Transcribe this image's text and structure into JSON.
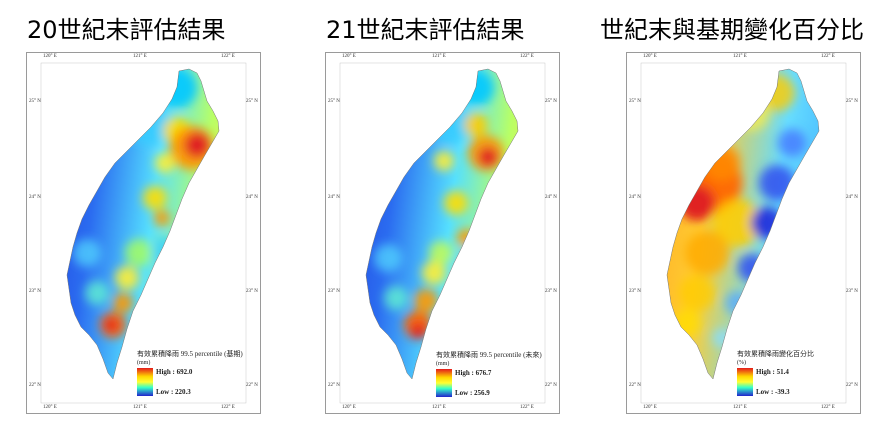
{
  "panels": [
    {
      "title": "20世紀末評估結果",
      "legend_title": "有效累積降雨 99.5 percentile (基期)",
      "unit": "(mm)",
      "high": "High : 692.0",
      "low": "Low : 220.3",
      "ramp": "jet"
    },
    {
      "title": "21世紀末評估結果",
      "legend_title": "有效累積降雨 99.5 percentile (未來)",
      "unit": "(mm)",
      "high": "High : 676.7",
      "low": "Low : 256.9",
      "ramp": "jet"
    },
    {
      "title": "世紀末與基期變化百分比",
      "legend_title": "有效累積降雨變化百分比",
      "unit": "(%)",
      "high": "High : 51.4",
      "low": "Low : -39.3",
      "ramp": "jet"
    }
  ],
  "axis": {
    "lon": [
      "120° E",
      "121° E",
      "122° E"
    ],
    "lat": [
      "25° N",
      "24° N",
      "23° N",
      "22° N"
    ]
  },
  "colors": {
    "high": "#d7191c",
    "mid": "#ffff00",
    "low": "#1a1adc"
  }
}
